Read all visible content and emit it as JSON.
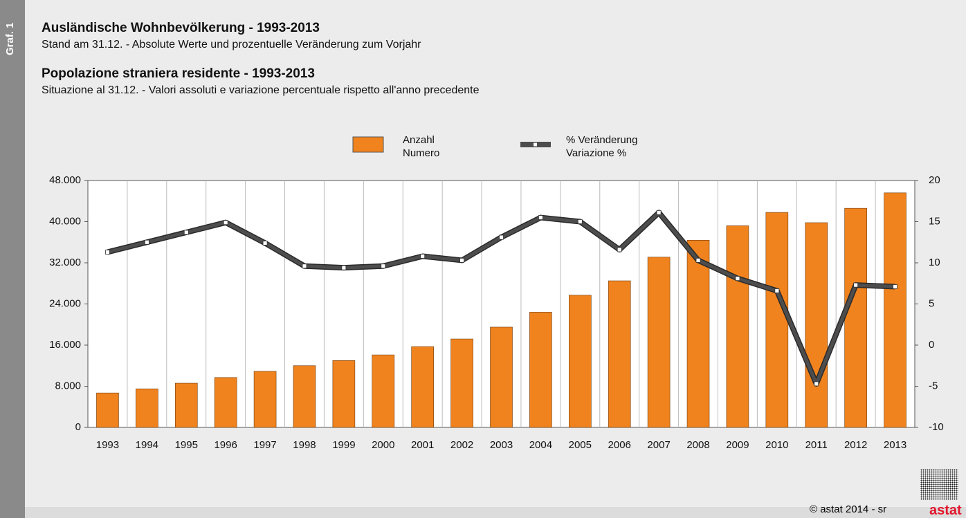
{
  "sidebar": "Graf. 1",
  "footer": "© astat 2014 - sr",
  "logo": "astat",
  "chart_data": {
    "type": "bar-line",
    "title": "Ausländische Wohnbevölkerung - 1993-2013",
    "subtitle": "Stand am 31.12. - Absolute Werte und prozentuelle Veränderung zum Vorjahr",
    "title_it": "Popolazione straniera residente - 1993-2013",
    "subtitle_it": "Situazione al 31.12. - Valori assoluti e variazione percentuale rispetto all'anno precedente",
    "categories": [
      "1993",
      "1994",
      "1995",
      "1996",
      "1997",
      "1998",
      "1999",
      "2000",
      "2001",
      "2002",
      "2003",
      "2004",
      "2005",
      "2006",
      "2007",
      "2008",
      "2009",
      "2010",
      "2011",
      "2012",
      "2013"
    ],
    "series": [
      {
        "name": "Anzahl\nNumero",
        "type": "bar",
        "color": "#f0831e",
        "values": [
          6700,
          7500,
          8600,
          9700,
          10900,
          12000,
          13000,
          14100,
          15700,
          17200,
          19500,
          22400,
          25700,
          28500,
          33100,
          36400,
          39200,
          41800,
          39800,
          42600,
          45600
        ]
      },
      {
        "name": "% Veränderung\nVariazione %",
        "type": "line",
        "axis": "y2",
        "color": "#4d4d4d",
        "values": [
          11.3,
          12.5,
          13.7,
          14.9,
          12.4,
          9.6,
          9.4,
          9.6,
          10.8,
          10.3,
          13.1,
          15.5,
          15.0,
          11.6,
          16.1,
          10.3,
          8.1,
          6.6,
          -4.7,
          7.3,
          7.1
        ]
      }
    ],
    "ylim": [
      0,
      48000
    ],
    "yticks": [
      0,
      {
        "value": 8000,
        "label": "8.000"
      },
      {
        "value": 16000,
        "label": "16.000"
      },
      {
        "value": 24000,
        "label": "24.000"
      },
      {
        "value": 32000,
        "label": "32.000"
      },
      {
        "value": 40000,
        "label": "40.000"
      },
      {
        "value": 48000,
        "label": "48.000"
      }
    ],
    "y2lim": [
      -10,
      20
    ],
    "y2ticks": [
      -10,
      -5,
      0,
      5,
      10,
      15,
      20
    ]
  }
}
